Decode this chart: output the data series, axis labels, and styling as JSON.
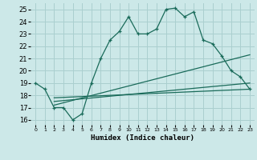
{
  "xlabel": "Humidex (Indice chaleur)",
  "bg_color": "#cce8e8",
  "grid_color": "#aacfcf",
  "line_color": "#1a6b5a",
  "xlim": [
    -0.5,
    23.5
  ],
  "ylim": [
    15.6,
    25.5
  ],
  "yticks": [
    16,
    17,
    18,
    19,
    20,
    21,
    22,
    23,
    24,
    25
  ],
  "xticks": [
    0,
    1,
    2,
    3,
    4,
    5,
    6,
    7,
    8,
    9,
    10,
    11,
    12,
    13,
    14,
    15,
    16,
    17,
    18,
    19,
    20,
    21,
    22,
    23
  ],
  "line1_x": [
    0,
    1,
    2,
    3,
    4,
    5,
    6,
    7,
    8,
    9,
    10,
    11,
    12,
    13,
    14,
    15,
    16,
    17,
    18,
    19,
    20,
    21,
    22,
    23
  ],
  "line1_y": [
    19.0,
    18.5,
    17.0,
    17.0,
    16.0,
    16.5,
    19.0,
    21.0,
    22.5,
    23.2,
    24.4,
    23.0,
    23.0,
    23.4,
    25.0,
    25.1,
    24.4,
    24.8,
    22.5,
    22.2,
    21.2,
    20.0,
    19.5,
    18.5
  ],
  "line2_x": [
    2,
    23
  ],
  "line2_y": [
    17.2,
    21.3
  ],
  "line3_x": [
    2,
    23
  ],
  "line3_y": [
    17.5,
    19.0
  ],
  "line4_x": [
    2,
    23
  ],
  "line4_y": [
    17.8,
    18.5
  ]
}
